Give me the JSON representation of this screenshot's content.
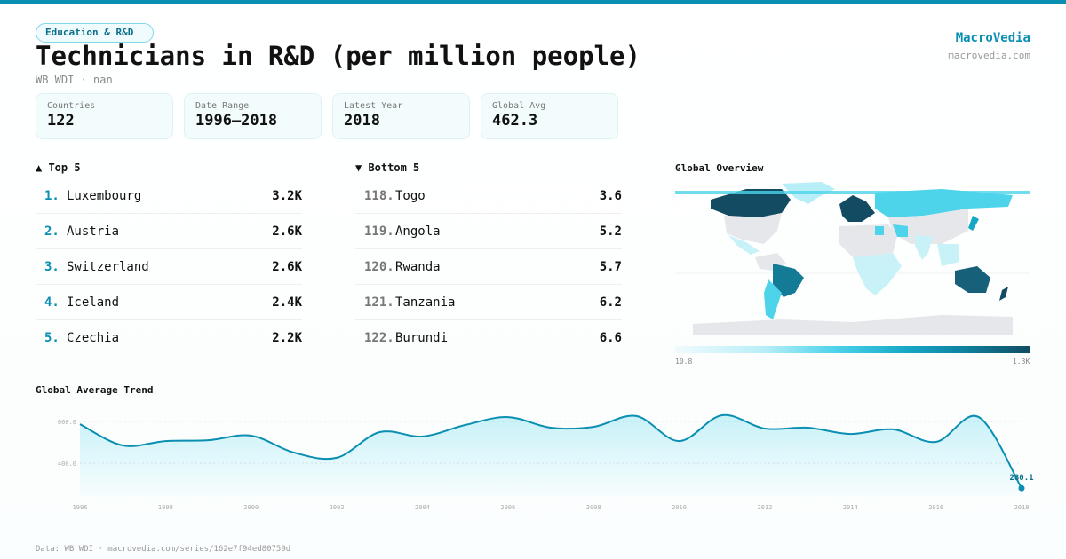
{
  "category": "Education & R&D",
  "title": "Technicians in R&D (per million people)",
  "subtitle": "WB WDI · nan",
  "brand": {
    "name": "MacroVedia",
    "url": "macrovedia.com"
  },
  "stats": [
    {
      "label": "Countries",
      "value": "122"
    },
    {
      "label": "Date Range",
      "value": "1996–2018"
    },
    {
      "label": "Latest Year",
      "value": "2018"
    },
    {
      "label": "Global Avg",
      "value": "462.3"
    }
  ],
  "top5": {
    "heading": "▲ Top 5",
    "items": [
      {
        "rank": "1.",
        "name": "Luxembourg",
        "value": "3.2K"
      },
      {
        "rank": "2.",
        "name": "Austria",
        "value": "2.6K"
      },
      {
        "rank": "3.",
        "name": "Switzerland",
        "value": "2.6K"
      },
      {
        "rank": "4.",
        "name": "Iceland",
        "value": "2.4K"
      },
      {
        "rank": "5.",
        "name": "Czechia",
        "value": "2.2K"
      }
    ]
  },
  "bottom5": {
    "heading": "▼ Bottom 5",
    "items": [
      {
        "rank": "118.",
        "name": "Togo",
        "value": "3.6"
      },
      {
        "rank": "119.",
        "name": "Angola",
        "value": "5.2"
      },
      {
        "rank": "120.",
        "name": "Rwanda",
        "value": "5.7"
      },
      {
        "rank": "121.",
        "name": "Tanzania",
        "value": "6.2"
      },
      {
        "rank": "122.",
        "name": "Burundi",
        "value": "6.6"
      }
    ]
  },
  "map": {
    "heading": "Global Overview",
    "scale_min": "10.8",
    "scale_max": "1.3K",
    "colors": {
      "low": "#f0fbfd",
      "mid": "#4dd3ea",
      "high": "#134b62",
      "nodata": "#e5e7ea"
    }
  },
  "footer": "Data: WB WDI · macrovedia.com/series/162e7f94ed80759d",
  "chart_data": {
    "type": "area",
    "title": "Global Average Trend",
    "x": [
      1996,
      1997,
      1998,
      1999,
      2000,
      2001,
      2002,
      2003,
      2004,
      2005,
      2006,
      2007,
      2008,
      2009,
      2010,
      2011,
      2012,
      2013,
      2014,
      2015,
      2016,
      2017,
      2018
    ],
    "values": [
      587,
      485,
      506,
      510,
      532,
      451,
      426,
      549,
      528,
      583,
      621,
      570,
      574,
      626,
      506,
      630,
      566,
      570,
      540,
      562,
      502,
      621,
      280.1
    ],
    "x_ticks": [
      "1996",
      "1998",
      "2000",
      "2002",
      "2004",
      "2006",
      "2008",
      "2010",
      "2012",
      "2014",
      "2016",
      "2018"
    ],
    "y_ticks": [
      "400.0",
      "600.0"
    ],
    "ylim": [
      250,
      650
    ],
    "last_label": "280.1",
    "grid": true,
    "color": "#0a8fb3"
  }
}
